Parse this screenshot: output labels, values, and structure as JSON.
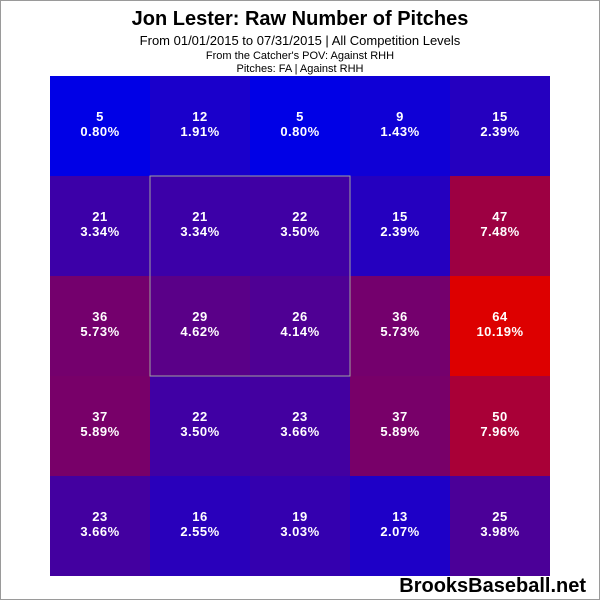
{
  "chart_data": {
    "type": "heatmap",
    "title": "Jon Lester: Raw Number of Pitches",
    "subtitle": "From 01/01/2015 to 07/31/2015 | All Competition Levels",
    "notes": [
      "From the Catcher's POV:   Against RHH",
      "Pitches:  FA  |  Against RHH"
    ],
    "rows": 5,
    "cols": 5,
    "counts": [
      [
        5,
        12,
        5,
        9,
        15
      ],
      [
        21,
        21,
        22,
        15,
        47
      ],
      [
        36,
        29,
        26,
        36,
        64
      ],
      [
        37,
        22,
        23,
        37,
        50
      ],
      [
        23,
        16,
        19,
        13,
        25
      ]
    ],
    "percents": [
      [
        "0.80%",
        "1.91%",
        "0.80%",
        "1.43%",
        "2.39%"
      ],
      [
        "3.34%",
        "3.34%",
        "3.50%",
        "2.39%",
        "7.48%"
      ],
      [
        "5.73%",
        "4.62%",
        "4.14%",
        "5.73%",
        "10.19%"
      ],
      [
        "5.89%",
        "3.50%",
        "3.66%",
        "5.89%",
        "7.96%"
      ],
      [
        "3.66%",
        "2.55%",
        "3.03%",
        "2.07%",
        "3.98%"
      ]
    ],
    "strike_zone": {
      "row_start": 1,
      "row_end": 3,
      "col_start": 1,
      "col_end": 3
    },
    "color_low": "#0000e6",
    "color_high": "#dd0000",
    "strike_zone_color": "#a0a0a0"
  },
  "watermark": "BrooksBaseball.net"
}
